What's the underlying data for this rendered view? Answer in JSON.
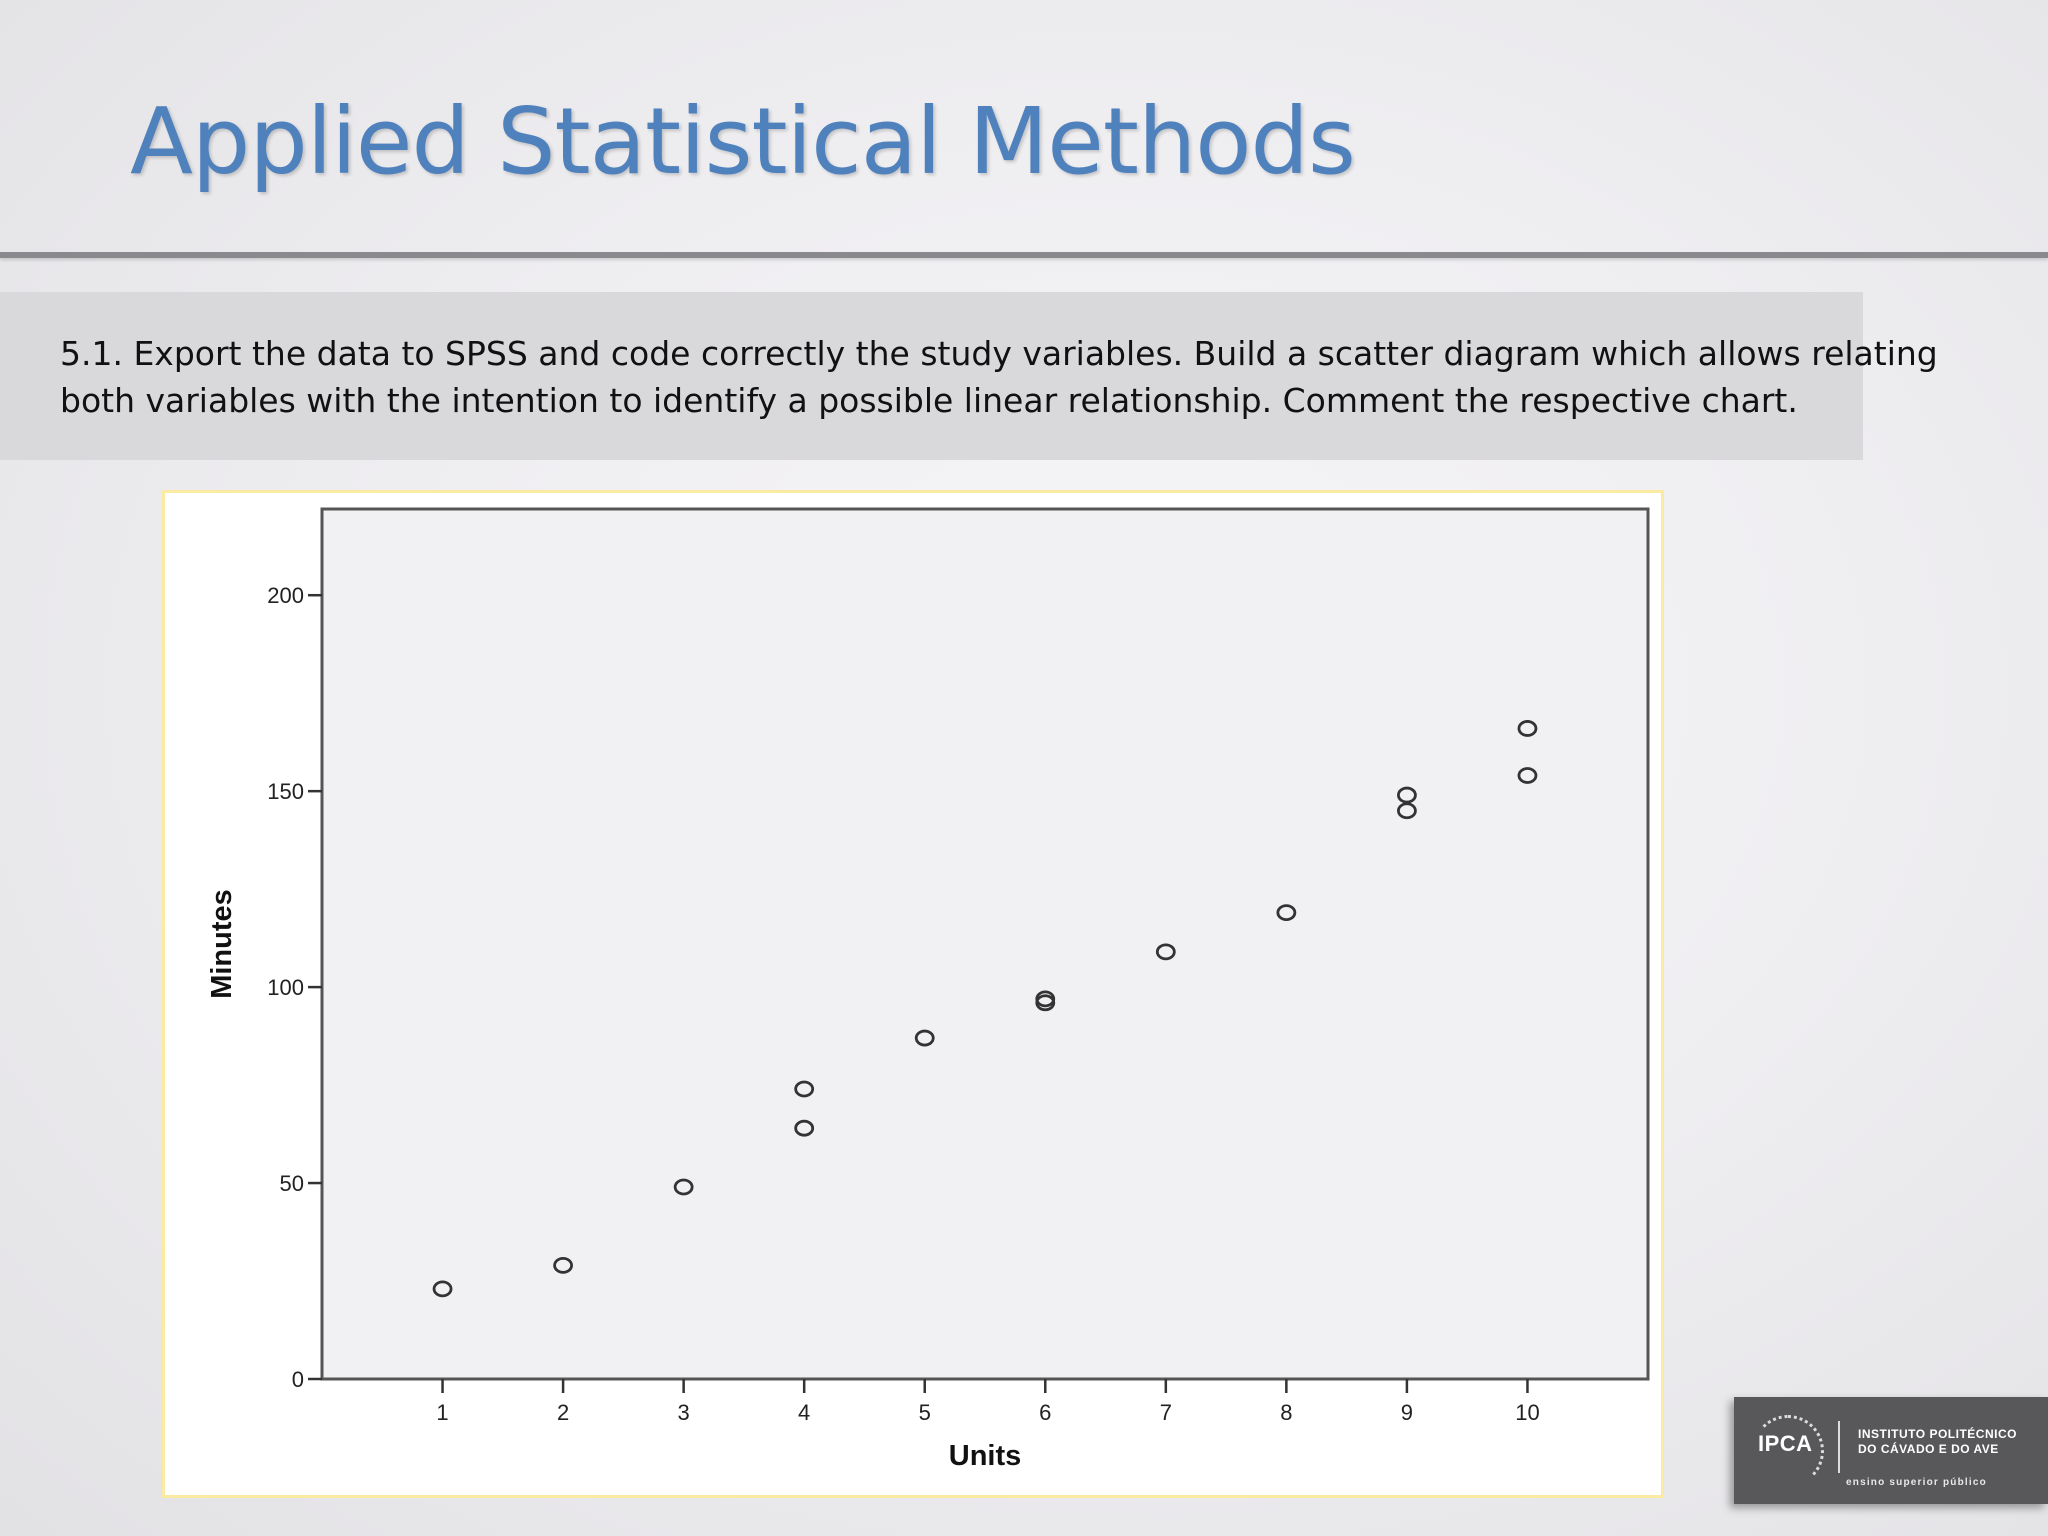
{
  "slide": {
    "title": "Applied Statistical Methods",
    "task_text": "5.1. Export the data to SPSS and code correctly the study variables. Build a scatter diagram which allows relating both variables with the intention to identify a possible linear relationship. Comment the respective chart.",
    "accent_color": "#4f81bd"
  },
  "chart_data": {
    "type": "scatter",
    "title": "",
    "xlabel": "Units",
    "ylabel": "Minutes",
    "xlim": [
      0,
      11
    ],
    "ylim": [
      0,
      222
    ],
    "x_ticks": [
      1,
      2,
      3,
      4,
      5,
      6,
      7,
      8,
      9,
      10
    ],
    "y_ticks": [
      0,
      50,
      100,
      150,
      200
    ],
    "grid": false,
    "marker": "hollow-circle",
    "points": [
      {
        "x": 1,
        "y": 23
      },
      {
        "x": 2,
        "y": 29
      },
      {
        "x": 3,
        "y": 49
      },
      {
        "x": 4,
        "y": 64
      },
      {
        "x": 4,
        "y": 74
      },
      {
        "x": 5,
        "y": 87
      },
      {
        "x": 6,
        "y": 96
      },
      {
        "x": 6,
        "y": 97
      },
      {
        "x": 7,
        "y": 109
      },
      {
        "x": 8,
        "y": 119
      },
      {
        "x": 9,
        "y": 145
      },
      {
        "x": 9,
        "y": 149
      },
      {
        "x": 10,
        "y": 154
      },
      {
        "x": 10,
        "y": 166
      }
    ]
  },
  "logo": {
    "mark": "IPCA",
    "name_line1": "INSTITUTO POLITÉCNICO",
    "name_line2": "DO CÁVADO E DO AVE",
    "tagline": "ensino superior público"
  }
}
